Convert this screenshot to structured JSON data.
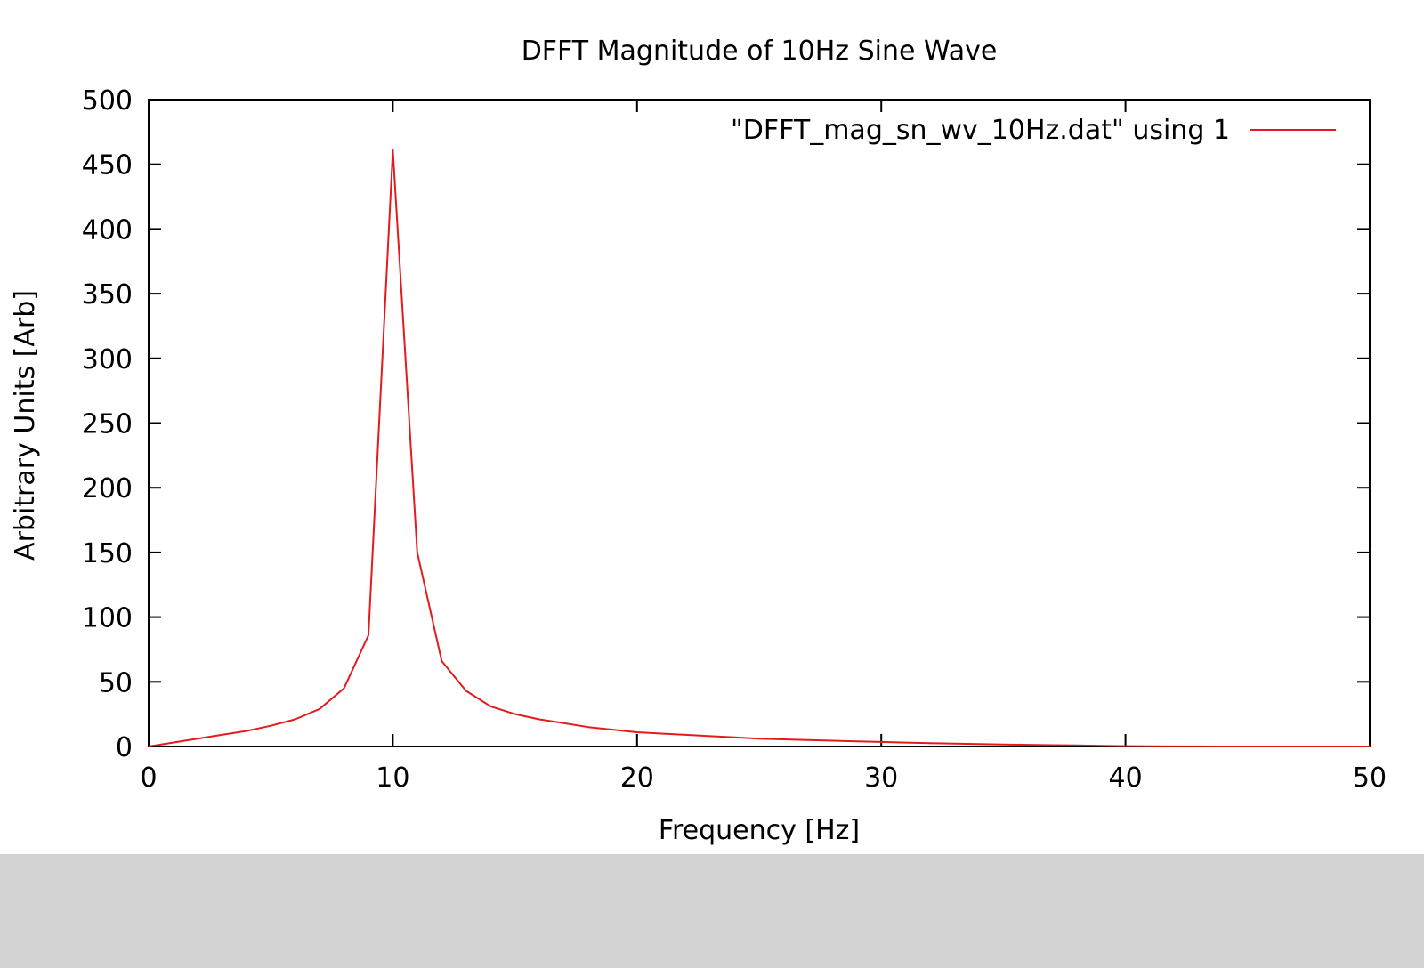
{
  "chart_data": {
    "type": "line",
    "title": "DFFT Magnitude of 10Hz Sine Wave",
    "xlabel": "Frequency [Hz]",
    "ylabel": "Arbitrary Units [Arb]",
    "xlim": [
      0,
      50
    ],
    "ylim": [
      0,
      500
    ],
    "xticks": [
      0,
      10,
      20,
      30,
      40,
      50
    ],
    "yticks": [
      0,
      50,
      100,
      150,
      200,
      250,
      300,
      350,
      400,
      450,
      500
    ],
    "grid": false,
    "legend_position": "top-right",
    "series": [
      {
        "name": "\"DFFT_mag_sn_wv_10Hz.dat\" using 1",
        "color": "#e41a1c",
        "x": [
          0,
          1,
          2,
          3,
          4,
          5,
          6,
          7,
          8,
          9,
          10,
          11,
          12,
          13,
          14,
          15,
          16,
          17,
          18,
          19,
          20,
          21,
          22,
          23,
          24,
          25,
          26,
          27,
          28,
          29,
          30,
          31,
          32,
          33,
          34,
          35,
          36,
          37,
          38,
          39,
          40,
          41,
          42,
          43,
          44,
          45,
          46,
          47,
          48,
          49,
          50
        ],
        "y": [
          0,
          3,
          6,
          9,
          12,
          16,
          21,
          29,
          45,
          86,
          461,
          150,
          66,
          43,
          31,
          25,
          21,
          18,
          15,
          13,
          11,
          10,
          9,
          8,
          7,
          6,
          5.5,
          5,
          4.5,
          4,
          3.5,
          3,
          2.6,
          2.2,
          1.9,
          1.6,
          1.3,
          1,
          0.8,
          0.5,
          0.3,
          0.2,
          0.1,
          0.05,
          0,
          0,
          0,
          0,
          0,
          0,
          0
        ]
      }
    ]
  }
}
